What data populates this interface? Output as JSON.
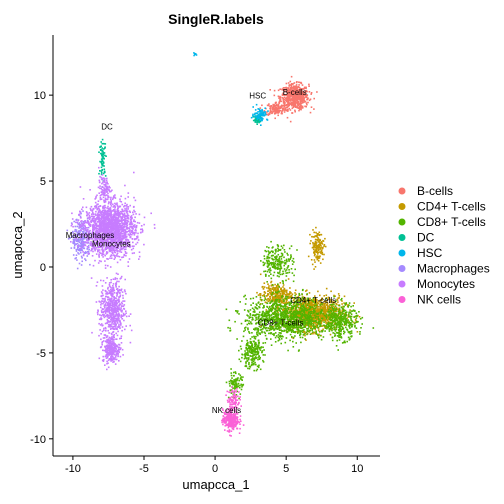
{
  "chart_data": {
    "type": "scatter",
    "title": "SingleR.labels",
    "xlabel": "umapcca_1",
    "ylabel": "umapcca_2",
    "xlim": [
      -11.4,
      11.6
    ],
    "ylim": [
      -11.0,
      13.5
    ],
    "xticks": [
      -10,
      -5,
      0,
      5,
      10
    ],
    "yticks": [
      -10,
      -5,
      0,
      5,
      10
    ],
    "tick_labels_x": [
      "-10",
      "-5",
      "0",
      "5",
      "10"
    ],
    "tick_labels_y": [
      "-10",
      "-5",
      "0",
      "5",
      "10"
    ],
    "grid": false,
    "legend_position": "right",
    "series": [
      {
        "name": "B-cells",
        "color": "#F8766D",
        "clusters": [
          {
            "center": [
              5.6,
              9.9
            ],
            "spread": [
              0.9,
              0.65
            ],
            "count": 620
          },
          {
            "center": [
              4.3,
              9.2
            ],
            "spread": [
              0.7,
              0.35
            ],
            "count": 140
          }
        ]
      },
      {
        "name": "CD4+ T-cells",
        "color": "#C49A00",
        "clusters": [
          {
            "center": [
              6.9,
              -2.7
            ],
            "spread": [
              2.0,
              0.9
            ],
            "count": 1100
          },
          {
            "center": [
              7.2,
              1.2
            ],
            "spread": [
              0.4,
              0.8
            ],
            "count": 150
          },
          {
            "center": [
              4.3,
              -1.6
            ],
            "spread": [
              1.0,
              0.6
            ],
            "count": 250
          }
        ]
      },
      {
        "name": "CD8+ T-cells",
        "color": "#53B400",
        "clusters": [
          {
            "center": [
              5.0,
              -3.0
            ],
            "spread": [
              2.6,
              1.1
            ],
            "count": 1100
          },
          {
            "center": [
              8.8,
              -3.2
            ],
            "spread": [
              1.1,
              0.9
            ],
            "count": 350
          },
          {
            "center": [
              4.4,
              0.3
            ],
            "spread": [
              1.0,
              0.9
            ],
            "count": 220
          },
          {
            "center": [
              2.6,
              -5.0
            ],
            "spread": [
              0.7,
              0.8
            ],
            "count": 220
          },
          {
            "center": [
              1.4,
              -6.8
            ],
            "spread": [
              0.5,
              0.6
            ],
            "count": 90
          }
        ]
      },
      {
        "name": "DC",
        "color": "#00C094",
        "clusters": [
          {
            "center": [
              -7.9,
              6.3
            ],
            "spread": [
              0.2,
              0.9
            ],
            "count": 70
          },
          {
            "center": [
              3.0,
              8.6
            ],
            "spread": [
              0.3,
              0.3
            ],
            "count": 50
          }
        ]
      },
      {
        "name": "HSC",
        "color": "#00B6EB",
        "clusters": [
          {
            "center": [
              3.2,
              8.9
            ],
            "spread": [
              0.45,
              0.35
            ],
            "count": 70
          },
          {
            "center": [
              -1.4,
              12.4
            ],
            "spread": [
              0.1,
              0.1
            ],
            "count": 8
          }
        ]
      },
      {
        "name": "Macrophages",
        "color": "#A58AFF",
        "clusters": [
          {
            "center": [
              -9.4,
              1.6
            ],
            "spread": [
              0.6,
              1.1
            ],
            "count": 260
          }
        ]
      },
      {
        "name": "Monocytes",
        "color": "#C77CFF",
        "clusters": [
          {
            "center": [
              -7.4,
              2.2
            ],
            "spread": [
              1.6,
              1.4
            ],
            "count": 1800
          },
          {
            "center": [
              -7.2,
              -2.5
            ],
            "spread": [
              0.8,
              1.6
            ],
            "count": 550
          },
          {
            "center": [
              -7.3,
              -4.8
            ],
            "spread": [
              0.55,
              0.7
            ],
            "count": 250
          },
          {
            "center": [
              -7.8,
              4.6
            ],
            "spread": [
              0.35,
              0.6
            ],
            "count": 90
          }
        ]
      },
      {
        "name": "NK cells",
        "color": "#FB61D7",
        "clusters": [
          {
            "center": [
              1.1,
              -8.9
            ],
            "spread": [
              0.5,
              0.55
            ],
            "count": 320
          },
          {
            "center": [
              1.3,
              -7.7
            ],
            "spread": [
              0.4,
              0.6
            ],
            "count": 80
          }
        ]
      }
    ],
    "annotations": [
      {
        "text": "B-cells",
        "x": 5.6,
        "y": 10.0
      },
      {
        "text": "HSC",
        "x": 3.0,
        "y": 9.8
      },
      {
        "text": "DC",
        "x": -7.6,
        "y": 8.0
      },
      {
        "text": "Macrophages",
        "x": -8.8,
        "y": 1.7
      },
      {
        "text": "Monocytes",
        "x": -7.3,
        "y": 1.2
      },
      {
        "text": "CD4+ T-cells",
        "x": 6.9,
        "y": -2.1
      },
      {
        "text": "CD8+ T-cells",
        "x": 4.6,
        "y": -3.4
      },
      {
        "text": "NK cells",
        "x": 0.8,
        "y": -8.5
      }
    ]
  }
}
